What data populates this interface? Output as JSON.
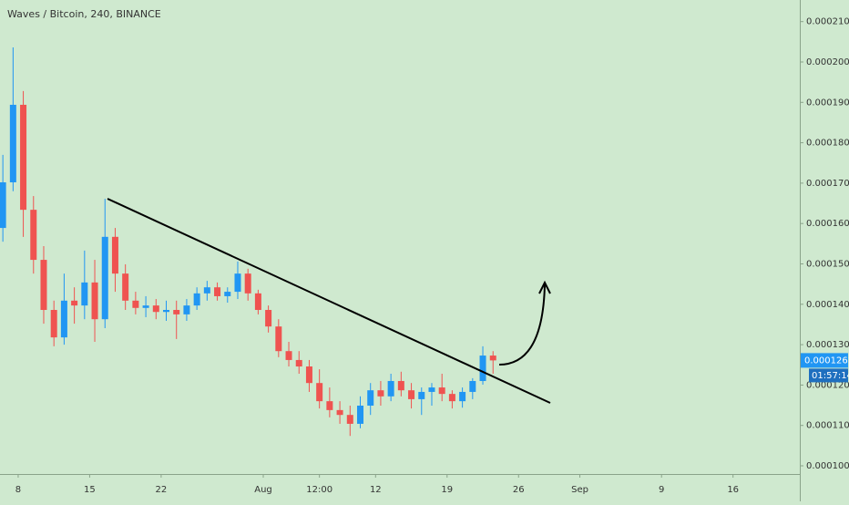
{
  "chart_data": {
    "type": "candlestick",
    "title": "Waves / Bitcoin, 240, BINANCE",
    "x": [
      6.5,
      7.5,
      8.5,
      9.5,
      10.5,
      11.5,
      12.5,
      13.5,
      14.5,
      15.5,
      16.5,
      17.5,
      18.5,
      19.5,
      20.5,
      21.5,
      22.5,
      23.5,
      24.5,
      25.5,
      26.5,
      27.5,
      28.5,
      29.5,
      30.5,
      31.5,
      32.5,
      33.5,
      34.5,
      35.5,
      36.5,
      37.5,
      38.5,
      39.5,
      40.5,
      41.5,
      42.5,
      43.5,
      44.5,
      45.5,
      46.5,
      47.5,
      48.5,
      49.5,
      50.5,
      51.5,
      52.5,
      53.5,
      54.5
    ],
    "open": [
      0.0001589,
      0.0001702,
      0.0001894,
      0.0001634,
      0.000151,
      0.0001386,
      0.0001318,
      0.0001409,
      0.0001397,
      0.0001454,
      0.0001363,
      0.0001567,
      0.0001476,
      0.0001409,
      0.0001391,
      0.0001397,
      0.0001381,
      0.0001386,
      0.0001375,
      0.0001397,
      0.0001427,
      0.0001442,
      0.000142,
      0.0001431,
      0.0001476,
      0.0001427,
      0.0001386,
      0.0001345,
      0.0001284,
      0.0001262,
      0.0001246,
      0.0001205,
      0.000116,
      0.0001138,
      0.0001126,
      0.0001104,
      0.0001149,
      0.0001187,
      0.0001172,
      0.000121,
      0.0001187,
      0.0001165,
      0.0001183,
      0.0001194,
      0.0001178,
      0.000116,
      0.0001183,
      0.000121,
      0.0001273
    ],
    "high": [
      0.000177,
      0.0002036,
      0.0001928,
      0.0001668,
      0.0001544,
      0.0001409,
      0.0001476,
      0.0001442,
      0.0001533,
      0.000151,
      0.0001661,
      0.0001589,
      0.0001499,
      0.0001431,
      0.000142,
      0.0001413,
      0.0001409,
      0.0001409,
      0.0001413,
      0.0001442,
      0.0001458,
      0.0001454,
      0.0001442,
      0.0001506,
      0.0001488,
      0.0001436,
      0.0001397,
      0.0001363,
      0.0001307,
      0.0001284,
      0.0001262,
      0.0001239,
      0.0001194,
      0.000116,
      0.0001149,
      0.0001172,
      0.0001205,
      0.000121,
      0.0001228,
      0.0001233,
      0.0001205,
      0.0001194,
      0.0001205,
      0.0001228,
      0.0001187,
      0.0001194,
      0.0001217,
      0.0001296,
      0.0001284
    ],
    "low": [
      0.0001555,
      0.000168,
      0.0001567,
      0.0001476,
      0.0001352,
      0.0001296,
      0.00013,
      0.0001352,
      0.0001363,
      0.0001307,
      0.0001341,
      0.0001431,
      0.0001386,
      0.0001375,
      0.0001368,
      0.0001363,
      0.0001359,
      0.0001314,
      0.0001359,
      0.0001386,
      0.0001409,
      0.0001409,
      0.0001404,
      0.0001413,
      0.0001409,
      0.0001375,
      0.000133,
      0.0001269,
      0.0001246,
      0.0001228,
      0.0001183,
      0.0001142,
      0.000112,
      0.0001104,
      0.0001074,
      0.0001093,
      0.0001126,
      0.0001149,
      0.000116,
      0.0001172,
      0.0001142,
      0.0001126,
      0.0001149,
      0.000116,
      0.0001142,
      0.0001144,
      0.0001165,
      0.0001201,
      0.0001228
    ],
    "close": [
      0.0001702,
      0.0001894,
      0.0001634,
      0.000151,
      0.0001386,
      0.0001318,
      0.0001409,
      0.0001397,
      0.0001454,
      0.0001363,
      0.0001567,
      0.0001476,
      0.0001409,
      0.0001391,
      0.0001397,
      0.0001381,
      0.0001386,
      0.0001375,
      0.0001397,
      0.0001427,
      0.0001442,
      0.000142,
      0.0001431,
      0.0001476,
      0.0001427,
      0.0001386,
      0.0001345,
      0.0001284,
      0.0001262,
      0.0001246,
      0.0001205,
      0.000116,
      0.0001138,
      0.0001126,
      0.0001104,
      0.0001149,
      0.0001187,
      0.0001172,
      0.000121,
      0.0001187,
      0.0001165,
      0.0001183,
      0.0001194,
      0.0001178,
      0.000116,
      0.0001183,
      0.000121,
      0.0001273,
      0.0001261
    ],
    "up_color": "#2196f3",
    "down_color": "#ef5350",
    "xlim": [
      6.22,
      84.54
    ],
    "xticks": [
      8,
      15,
      22,
      {
        "value": 32,
        "label": "Aug"
      },
      {
        "value": 37.5,
        "label": "12:00"
      },
      {
        "value": 43,
        "label": "12"
      },
      {
        "value": 50,
        "label": "19"
      },
      {
        "value": 57,
        "label": "26"
      },
      {
        "value": 63,
        "label": "Sep"
      },
      {
        "value": 71,
        "label": "9"
      },
      {
        "value": 78,
        "label": "16"
      }
    ],
    "ylim": [
      9.797e-05,
      0.00021535
    ],
    "yticks": [
      {
        "value": 0.0001,
        "label": "0.0001000"
      },
      {
        "value": 0.00011,
        "label": "0.0001100"
      },
      {
        "value": 0.00012,
        "label": "0.0001200"
      },
      {
        "value": 0.00013,
        "label": "0.0001300"
      },
      {
        "value": 0.00014,
        "label": "0.0001400"
      },
      {
        "value": 0.00015,
        "label": "0.0001500"
      },
      {
        "value": 0.00016,
        "label": "0.0001600"
      },
      {
        "value": 0.00017,
        "label": "0.0001700"
      },
      {
        "value": 0.00018,
        "label": "0.0001800"
      },
      {
        "value": 0.00019,
        "label": "0.0001900"
      },
      {
        "value": 0.0002,
        "label": "0.0002000"
      },
      {
        "value": 0.00021,
        "label": "0.0002100"
      }
    ],
    "grid": false,
    "countdown": "01:57:14"
  }
}
